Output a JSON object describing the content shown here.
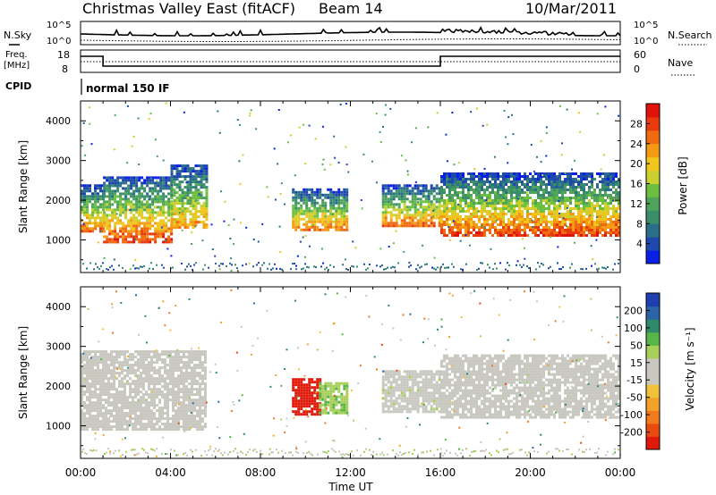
{
  "header": {
    "title": "Christmas Valley East (fitACF)",
    "beam": "Beam 14",
    "date": "10/Mar/2011"
  },
  "strips": {
    "nsky_label": "N.Sky",
    "nsearch_label": "N.Search",
    "count_ticks": [
      "10^5",
      "10^0"
    ],
    "freq_label": "Freq.",
    "freq_unit": "[MHz]",
    "freq_ticks": [
      "18",
      "8"
    ],
    "nave_label": "Nave",
    "nave_ticks": [
      "60",
      "0"
    ],
    "cpid_label": "CPID",
    "cpid_value": "normal 150 IF"
  },
  "axes": {
    "ylabel": "Slant Range [km]",
    "yticks": [
      "1000",
      "2000",
      "3000",
      "4000"
    ],
    "xticks": [
      "00:00",
      "04:00",
      "08:00",
      "12:00",
      "16:00",
      "20:00",
      "00:00"
    ],
    "xlabel": "Time UT"
  },
  "colorbars": {
    "power": {
      "label": "Power [dB]",
      "ticks": [
        "4",
        "8",
        "12",
        "16",
        "20",
        "24",
        "28"
      ],
      "colors": [
        "#0a1fe6",
        "#1f48ad",
        "#2a6e8a",
        "#3a8f6a",
        "#4fa35a",
        "#6cbf3f",
        "#c9d030",
        "#f2c51c",
        "#f59a14",
        "#f06a10",
        "#e83a0c",
        "#e0120a"
      ]
    },
    "velocity": {
      "label": "Velocity [m s⁻¹]",
      "ticks": [
        "200",
        "100",
        "50",
        "15",
        "-15",
        "-50",
        "-100",
        "-200"
      ],
      "colors": [
        "#1f3fb0",
        "#2a63a6",
        "#2f8a6a",
        "#58b548",
        "#a8cf5a",
        "#c8c8c0",
        "#c8c8c0",
        "#f0c23a",
        "#f2a12a",
        "#f07a1e",
        "#e84a10",
        "#e01a0a"
      ]
    }
  },
  "chart_data": [
    {
      "type": "heatmap",
      "panel": "power",
      "x": [
        "00:00",
        "04:00",
        "08:00",
        "12:00",
        "16:00",
        "20:00",
        "00:00"
      ],
      "ylim": [
        180,
        4500
      ],
      "scale": [
        0,
        30
      ],
      "regions": [
        {
          "t0": 0.0,
          "t1": 1.0,
          "r0": 1200,
          "r1": 2400,
          "peak": 25
        },
        {
          "t0": 1.0,
          "t1": 4.0,
          "r0": 950,
          "r1": 2600,
          "peak": 27
        },
        {
          "t0": 4.0,
          "t1": 5.6,
          "r0": 1300,
          "r1": 2900,
          "peak": 22
        },
        {
          "t0": 9.4,
          "t1": 11.8,
          "r0": 1250,
          "r1": 2300,
          "peak": 24
        },
        {
          "t0": 13.4,
          "t1": 16.0,
          "r0": 1350,
          "r1": 2400,
          "peak": 25
        },
        {
          "t0": 16.0,
          "t1": 24.0,
          "r0": 1100,
          "r1": 2700,
          "peak": 27
        }
      ]
    },
    {
      "type": "heatmap",
      "panel": "velocity",
      "x": [
        "00:00",
        "04:00",
        "08:00",
        "12:00",
        "16:00",
        "20:00",
        "00:00"
      ],
      "ylim": [
        180,
        4500
      ],
      "scale": [
        -200,
        200
      ],
      "regions": [
        {
          "t0": 0.0,
          "t1": 5.6,
          "r0": 900,
          "r1": 2900,
          "v": 0
        },
        {
          "t0": 9.4,
          "t1": 10.6,
          "r0": 1300,
          "r1": 2200,
          "v": -200
        },
        {
          "t0": 10.6,
          "t1": 11.8,
          "r0": 1300,
          "r1": 2100,
          "v": 60
        },
        {
          "t0": 13.4,
          "t1": 16.0,
          "r0": 1350,
          "r1": 2400,
          "v": 20
        },
        {
          "t0": 16.0,
          "t1": 24.0,
          "r0": 1200,
          "r1": 2800,
          "v": 0
        }
      ]
    }
  ]
}
